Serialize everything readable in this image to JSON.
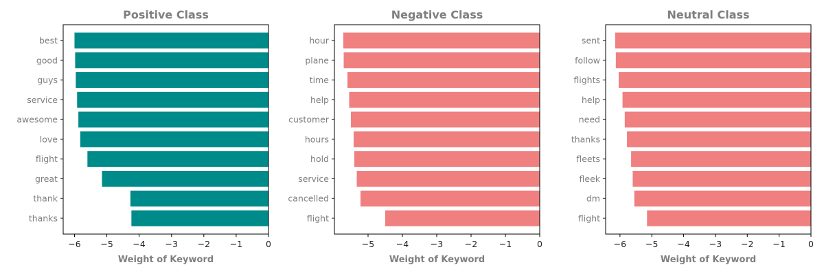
{
  "chart_data": [
    {
      "type": "bar",
      "orientation": "horizontal",
      "title": "Positive Class",
      "xlabel": "Weight of Keyword",
      "ylabel": "",
      "categories": [
        "best",
        "good",
        "guys",
        "service",
        "awesome",
        "love",
        "flight",
        "great",
        "thank",
        "thanks"
      ],
      "values": [
        -6.0,
        -5.98,
        -5.96,
        -5.92,
        -5.88,
        -5.82,
        -5.6,
        -5.15,
        -4.27,
        -4.24
      ],
      "xlim": [
        -6.35,
        0
      ],
      "xticks": [
        "−6",
        "−5",
        "−4",
        "−3",
        "−2",
        "−1",
        "0"
      ],
      "bar_color": "#008b8b",
      "grid": false
    },
    {
      "type": "bar",
      "orientation": "horizontal",
      "title": "Negative Class",
      "xlabel": "Weight of Keyword",
      "ylabel": "",
      "categories": [
        "hour",
        "plane",
        "time",
        "help",
        "customer",
        "hours",
        "hold",
        "service",
        "cancelled",
        "flight"
      ],
      "values": [
        -5.72,
        -5.71,
        -5.6,
        -5.55,
        -5.5,
        -5.42,
        -5.4,
        -5.33,
        -5.22,
        -4.5
      ],
      "xlim": [
        -5.98,
        0
      ],
      "xticks": [
        "−5",
        "−4",
        "−3",
        "−2",
        "−1",
        "0"
      ],
      "bar_color": "#f08080",
      "grid": false
    },
    {
      "type": "bar",
      "orientation": "horizontal",
      "title": "Neutral Class",
      "xlabel": "Weight of Keyword",
      "ylabel": "",
      "categories": [
        "sent",
        "follow",
        "flights",
        "help",
        "need",
        "thanks",
        "fleets",
        "fleek",
        "dm",
        "flight"
      ],
      "values": [
        -6.15,
        -6.13,
        -6.04,
        -5.92,
        -5.85,
        -5.78,
        -5.65,
        -5.6,
        -5.55,
        -5.15
      ],
      "xlim": [
        -6.45,
        0
      ],
      "xticks": [
        "−6",
        "−5",
        "−4",
        "−3",
        "−2",
        "−1",
        "0"
      ],
      "bar_color": "#f08080",
      "grid": false
    }
  ]
}
